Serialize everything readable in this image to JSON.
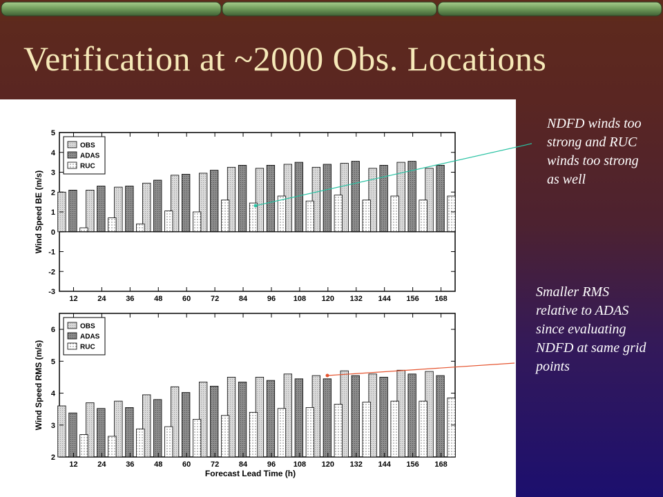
{
  "slide": {
    "title": "Verification at ~2000 Obs. Locations",
    "annotations": [
      "NDFD winds too strong and RUC winds too strong as well",
      "Smaller RMS relative to ADAS since evaluating NDFD at same grid points"
    ],
    "annotation_arrow_colors": [
      "#29c2a3",
      "#e5532e"
    ]
  },
  "chart_data": [
    {
      "type": "bar",
      "ylabel": "Wind Speed BE (m/s)",
      "xlabel": "",
      "ylim": [
        -3,
        5
      ],
      "yticks": [
        "5",
        "4",
        "3",
        "2",
        "1",
        "0",
        "-1",
        "-2",
        "-3"
      ],
      "grid": false,
      "legend_position": "top-left",
      "categories": [
        "12",
        "24",
        "36",
        "48",
        "60",
        "72",
        "84",
        "96",
        "108",
        "120",
        "132",
        "144",
        "156",
        "168"
      ],
      "series": [
        {
          "name": "OBS",
          "pattern": "light-gray",
          "values": [
            2.0,
            2.1,
            2.25,
            2.45,
            2.85,
            2.95,
            3.25,
            3.2,
            3.4,
            3.25,
            3.45,
            3.2,
            3.5,
            3.2
          ]
        },
        {
          "name": "ADAS",
          "pattern": "dark-gray",
          "values": [
            2.1,
            2.3,
            2.3,
            2.6,
            2.9,
            3.1,
            3.35,
            3.35,
            3.5,
            3.4,
            3.55,
            3.35,
            3.55,
            3.35
          ]
        },
        {
          "name": "RUC",
          "pattern": "dotted-white",
          "values": [
            0.2,
            0.7,
            0.4,
            1.05,
            1.0,
            1.6,
            1.45,
            1.8,
            1.55,
            1.85,
            1.6,
            1.8,
            1.6,
            1.8
          ]
        }
      ]
    },
    {
      "type": "bar",
      "ylabel": "Wind Speed RMS (m/s)",
      "xlabel": "Forecast Lead Time (h)",
      "ylim": [
        2,
        6.5
      ],
      "yticks": [
        "6",
        "5",
        "4",
        "3",
        "2"
      ],
      "grid": false,
      "legend_position": "top-left",
      "categories": [
        "12",
        "24",
        "36",
        "48",
        "60",
        "72",
        "84",
        "96",
        "108",
        "120",
        "132",
        "144",
        "156",
        "168"
      ],
      "series": [
        {
          "name": "OBS",
          "pattern": "light-gray",
          "values": [
            3.6,
            3.7,
            3.75,
            3.95,
            4.2,
            4.35,
            4.5,
            4.5,
            4.6,
            4.55,
            4.7,
            4.6,
            4.72,
            4.68
          ]
        },
        {
          "name": "ADAS",
          "pattern": "dark-gray",
          "values": [
            3.38,
            3.52,
            3.55,
            3.8,
            4.02,
            4.22,
            4.35,
            4.4,
            4.45,
            4.45,
            4.55,
            4.5,
            4.6,
            4.55
          ]
        },
        {
          "name": "RUC",
          "pattern": "dotted-white",
          "values": [
            2.7,
            2.65,
            2.88,
            2.95,
            3.18,
            3.3,
            3.4,
            3.52,
            3.55,
            3.65,
            3.72,
            3.75,
            3.75,
            3.85
          ]
        }
      ]
    }
  ]
}
